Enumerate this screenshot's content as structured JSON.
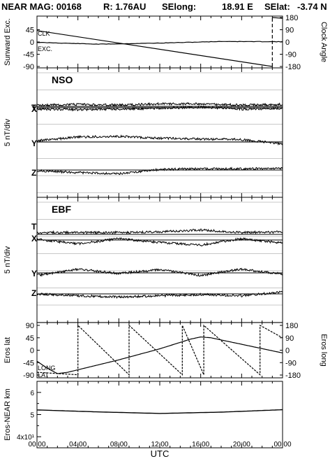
{
  "header": {
    "instrument": "NEAR MAG: 00168",
    "range": "R: 1.76AU",
    "selong_label": "SElong:",
    "selong_value": "18.91 E",
    "selat_label": "SElat:",
    "selat_value": "-3.74 N"
  },
  "panel_labels": {
    "nso": "NSO",
    "ebf": "EBF",
    "per_div_1": "5 nT/div",
    "per_div_2": "5 nT/div"
  },
  "x_axis": {
    "title": "UTC",
    "ticks": [
      "00:00",
      "04:00",
      "08:00",
      "12:00",
      "16:00",
      "20:00",
      "00:00"
    ]
  },
  "chart_data": [
    {
      "type": "line",
      "panel": "sunward-excursion-clock-angle",
      "ylabel": "Sunward Exc.",
      "y2label": "Clock Angle",
      "yticks": [
        "45",
        "0",
        "-45",
        "-90"
      ],
      "y2ticks": [
        "180",
        "90",
        "0",
        "-90",
        "-180"
      ],
      "ylim": [
        -90,
        90
      ],
      "y2lim": [
        -180,
        180
      ],
      "series": [
        {
          "name": "CLK",
          "x": [
            0,
            23.0,
            23.0,
            24
          ],
          "y": [
            84,
            -180,
            180,
            174
          ]
        },
        {
          "name": "EXC.",
          "x": [
            0,
            6,
            12,
            18,
            24
          ],
          "y": [
            -1.5,
            -8,
            -4,
            2,
            1
          ]
        }
      ]
    },
    {
      "type": "line",
      "panel": "NSO",
      "ylabel": "5 nT/div",
      "series": [
        {
          "name": "T",
          "x": [
            0,
            4,
            8,
            12,
            16,
            20,
            24
          ],
          "y": [
            0.2,
            0.3,
            0.2,
            0.4,
            0.4,
            0.2,
            0.3
          ]
        },
        {
          "name": "X",
          "x": [
            0,
            4,
            8,
            12,
            16,
            20,
            24
          ],
          "y": [
            -0.2,
            -0.3,
            -0.2,
            -0.1,
            0.1,
            -0.2,
            -0.1
          ]
        },
        {
          "name": "Y",
          "x": [
            0,
            4,
            8,
            12,
            16,
            20,
            24
          ],
          "y": [
            0.2,
            0.8,
            0.9,
            0.6,
            0.5,
            0.4,
            -0.3
          ]
        },
        {
          "name": "Z",
          "x": [
            0,
            4,
            8,
            12,
            16,
            20,
            24
          ],
          "y": [
            -0.1,
            -0.4,
            -0.6,
            0.1,
            0.2,
            0.2,
            0.3
          ]
        }
      ]
    },
    {
      "type": "line",
      "panel": "EBF",
      "ylabel": "5 nT/div",
      "series": [
        {
          "name": "T",
          "x": [
            0,
            4,
            8,
            12,
            16,
            20,
            24
          ],
          "y": [
            0.3,
            0.3,
            0.3,
            0.4,
            0.7,
            0.3,
            0.4
          ]
        },
        {
          "name": "X",
          "x": [
            0,
            4,
            8,
            12,
            16,
            20,
            24
          ],
          "y": [
            0.1,
            -0.6,
            0.2,
            -0.4,
            -0.8,
            0.2,
            -0.5
          ]
        },
        {
          "name": "Y",
          "x": [
            0,
            4,
            8,
            12,
            16,
            20,
            24
          ],
          "y": [
            -0.4,
            0.6,
            -0.1,
            0.5,
            -0.4,
            0.6,
            -0.2
          ]
        },
        {
          "name": "Z",
          "x": [
            0,
            4,
            8,
            12,
            16,
            20,
            24
          ],
          "y": [
            0.0,
            -0.3,
            -0.5,
            -0.3,
            -0.1,
            -0.3,
            0.3
          ]
        }
      ]
    },
    {
      "type": "line",
      "panel": "eros-lat-long",
      "ylabel": "Eros lat",
      "y2label": "Eros long",
      "yticks": [
        "90",
        "45",
        "0",
        "-45",
        "-90"
      ],
      "y2ticks": [
        "180",
        "90",
        "0",
        "-90",
        "-180"
      ],
      "ylim": [
        -90,
        90
      ],
      "y2lim": [
        -180,
        180
      ],
      "series": [
        {
          "name": "LONG",
          "x": [
            0,
            4.0,
            4.0,
            9.0,
            9.0,
            14.2,
            14.2,
            16.3,
            16.3,
            21.8,
            21.8,
            24
          ],
          "y": [
            -160,
            -178,
            180,
            -178,
            180,
            -178,
            180,
            -178,
            180,
            -178,
            180,
            90
          ]
        },
        {
          "name": "LAT",
          "x": [
            0,
            1,
            2,
            3,
            8,
            12,
            15,
            16,
            17,
            24
          ],
          "y": [
            -40,
            -65,
            -85,
            -80,
            -35,
            5,
            40,
            48,
            45,
            -10
          ]
        }
      ]
    },
    {
      "type": "line",
      "panel": "eros-near-distance",
      "ylabel": "Eros-NEAR km",
      "yticks": [
        "6",
        "5",
        "4x10¹"
      ],
      "ylim": [
        35,
        65
      ],
      "series": [
        {
          "name": "distance",
          "x": [
            0,
            6,
            12,
            18,
            24
          ],
          "y": [
            52.1,
            51.2,
            50.5,
            51.1,
            52.2
          ]
        }
      ]
    }
  ],
  "colors": {
    "ink": "#000000",
    "grid": "#c8c8c8",
    "background": "#ffffff"
  }
}
